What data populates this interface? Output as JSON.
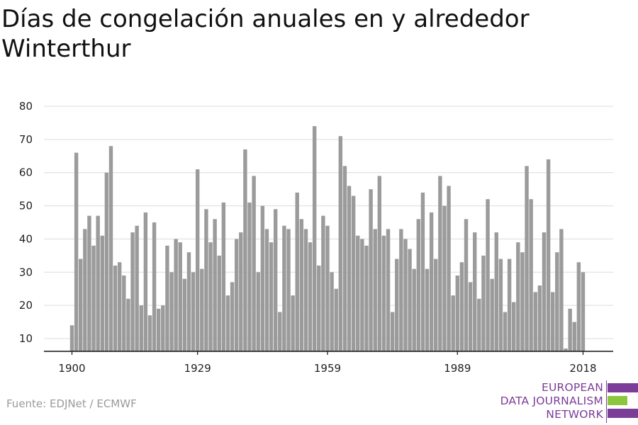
{
  "header": {
    "title": "Días de congelación anuales en y alrededor Winterthur"
  },
  "footer": {
    "source": "Fuente: EDJNet / ECMWF"
  },
  "logo": {
    "line1": "EUROPEAN",
    "line2": "DATA JOURNALISM",
    "line3": "NETWORK",
    "colors": {
      "purple": "#7b3d97",
      "green": "#8cc63f"
    }
  },
  "chart_data": {
    "type": "bar",
    "title": "Días de congelación anuales en y alrededor Winterthur",
    "xlabel": "",
    "ylabel": "",
    "x_start": 1900,
    "x_end": 2018,
    "x_tick_labels": [
      "1900",
      "1929",
      "1959",
      "1989",
      "2018"
    ],
    "x_tick_values": [
      1900,
      1929,
      1959,
      1989,
      2018
    ],
    "y_tick_labels": [
      "10",
      "20",
      "30",
      "40",
      "50",
      "60",
      "70",
      "80"
    ],
    "ylim": [
      6,
      80
    ],
    "grid": true,
    "bar_color": "#9b9b9b",
    "grid_color": "#dcdcdc",
    "years": [
      1900,
      1901,
      1902,
      1903,
      1904,
      1905,
      1906,
      1907,
      1908,
      1909,
      1910,
      1911,
      1912,
      1913,
      1914,
      1915,
      1916,
      1917,
      1918,
      1919,
      1920,
      1921,
      1922,
      1923,
      1924,
      1925,
      1926,
      1927,
      1928,
      1929,
      1930,
      1931,
      1932,
      1933,
      1934,
      1935,
      1936,
      1937,
      1938,
      1939,
      1940,
      1941,
      1942,
      1943,
      1944,
      1945,
      1946,
      1947,
      1948,
      1949,
      1950,
      1951,
      1952,
      1953,
      1954,
      1955,
      1956,
      1957,
      1958,
      1959,
      1960,
      1961,
      1962,
      1963,
      1964,
      1965,
      1966,
      1967,
      1968,
      1969,
      1970,
      1971,
      1972,
      1973,
      1974,
      1975,
      1976,
      1977,
      1978,
      1979,
      1980,
      1981,
      1982,
      1983,
      1984,
      1985,
      1986,
      1987,
      1988,
      1989,
      1990,
      1991,
      1992,
      1993,
      1994,
      1995,
      1996,
      1997,
      1998,
      1999,
      2000,
      2001,
      2002,
      2003,
      2004,
      2005,
      2006,
      2007,
      2008,
      2009,
      2010,
      2011,
      2012,
      2013,
      2014,
      2015,
      2016,
      2017,
      2018
    ],
    "values": [
      14,
      66,
      34,
      43,
      47,
      38,
      47,
      41,
      60,
      68,
      32,
      33,
      29,
      22,
      42,
      44,
      20,
      48,
      17,
      45,
      19,
      20,
      38,
      30,
      40,
      39,
      28,
      36,
      30,
      61,
      31,
      49,
      39,
      46,
      35,
      51,
      23,
      27,
      40,
      42,
      67,
      51,
      59,
      30,
      50,
      43,
      39,
      49,
      18,
      44,
      43,
      23,
      54,
      46,
      43,
      39,
      74,
      32,
      47,
      44,
      30,
      25,
      71,
      62,
      56,
      53,
      41,
      40,
      38,
      55,
      43,
      59,
      41,
      43,
      18,
      34,
      43,
      40,
      37,
      31,
      46,
      54,
      31,
      48,
      34,
      59,
      50,
      56,
      23,
      29,
      33,
      46,
      27,
      42,
      22,
      35,
      52,
      28,
      42,
      34,
      18,
      34,
      21,
      39,
      36,
      62,
      52,
      24,
      26,
      42,
      64,
      24,
      36,
      43,
      7,
      19,
      15,
      33,
      30
    ]
  }
}
